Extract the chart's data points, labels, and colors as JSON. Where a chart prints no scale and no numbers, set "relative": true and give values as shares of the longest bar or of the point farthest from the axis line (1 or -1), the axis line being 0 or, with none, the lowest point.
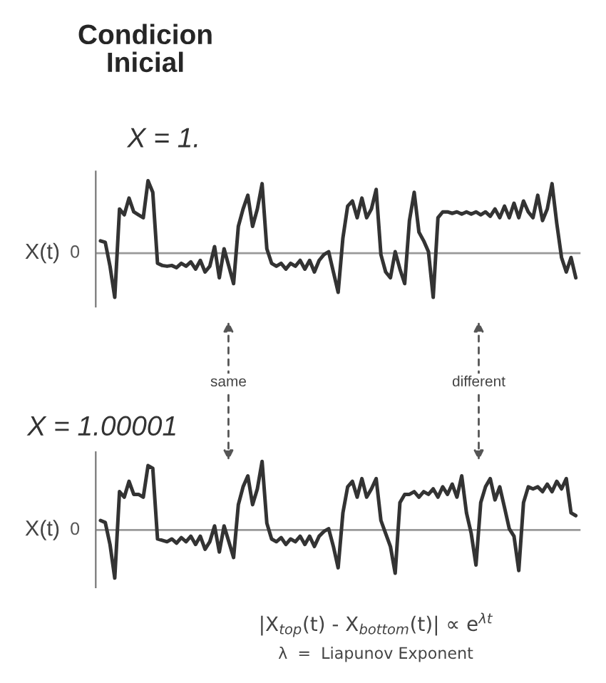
{
  "chart_data": [
    {
      "type": "line",
      "title": "Condicion\nInicial",
      "subtitle": "X = 1.",
      "ylabel": "X(t)",
      "relative": true,
      "legend": false,
      "marker": "none",
      "line_style": "solid",
      "categories": [
        null,
        null,
        null,
        null,
        null,
        null,
        null,
        null,
        null,
        null,
        null,
        null,
        null,
        null,
        null,
        null,
        null,
        null,
        null,
        null,
        null,
        null,
        null,
        null,
        null,
        null,
        null,
        null,
        null,
        null,
        null,
        null,
        null,
        null,
        null,
        null,
        null,
        null,
        null,
        null,
        null,
        null,
        null,
        null,
        null,
        null,
        null,
        null,
        null,
        null,
        null,
        null,
        null,
        null,
        null,
        null,
        null,
        null,
        null,
        null,
        null,
        null,
        null,
        null,
        null,
        null,
        null,
        null,
        null,
        null,
        null,
        null,
        null,
        null,
        null,
        null,
        null,
        null,
        null,
        null,
        null,
        null,
        null,
        null,
        null,
        null,
        null,
        null,
        null,
        null,
        null,
        null,
        null,
        null,
        null,
        null,
        null,
        null,
        null,
        null,
        null
      ],
      "series": [
        {
          "color": "#333333",
          "values": [
            0.17,
            0.15,
            -0.18,
            -0.61,
            0.61,
            0.53,
            0.76,
            0.57,
            0.53,
            0.49,
            1,
            0.84,
            -0.14,
            -0.17,
            -0.18,
            -0.17,
            -0.2,
            -0.14,
            -0.18,
            -0.12,
            -0.22,
            -0.1,
            -0.26,
            -0.18,
            0.09,
            -0.34,
            0.06,
            -0.18,
            -0.42,
            0.37,
            0.61,
            0.8,
            0.37,
            0.61,
            0.96,
            0.06,
            -0.14,
            -0.18,
            -0.14,
            -0.22,
            -0.14,
            -0.18,
            -0.1,
            -0.22,
            -0.1,
            -0.26,
            -0.1,
            -0.02,
            0.02,
            -0.26,
            -0.54,
            0.21,
            0.65,
            0.72,
            0.49,
            0.76,
            0.49,
            0.61,
            0.88,
            -0.02,
            -0.26,
            -0.34,
            0.02,
            -0.22,
            -0.42,
            0.45,
            0.84,
            0.29,
            0.17,
            0.02,
            -0.61,
            0.49,
            0.57,
            0.57,
            0.55,
            0.57,
            0.54,
            0.57,
            0.54,
            0.57,
            0.53,
            0.57,
            0.51,
            0.61,
            0.49,
            0.65,
            0.49,
            0.69,
            0.49,
            0.72,
            0.57,
            0.49,
            0.8,
            0.45,
            0.61,
            0.96,
            0.41,
            -0.06,
            -0.26,
            -0.06,
            -0.34
          ]
        }
      ],
      "ref_lines": [
        {
          "axis": "y",
          "value": 0,
          "label": "0",
          "color": "#999999"
        }
      ]
    },
    {
      "type": "line",
      "title": "X = 1.00001",
      "ylabel": "X(t)",
      "relative": true,
      "legend": false,
      "marker": "none",
      "line_style": "solid",
      "categories": [
        null,
        null,
        null,
        null,
        null,
        null,
        null,
        null,
        null,
        null,
        null,
        null,
        null,
        null,
        null,
        null,
        null,
        null,
        null,
        null,
        null,
        null,
        null,
        null,
        null,
        null,
        null,
        null,
        null,
        null,
        null,
        null,
        null,
        null,
        null,
        null,
        null,
        null,
        null,
        null,
        null,
        null,
        null,
        null,
        null,
        null,
        null,
        null,
        null,
        null,
        null,
        null,
        null,
        null,
        null,
        null,
        null,
        null,
        null,
        null,
        null,
        null,
        null,
        null,
        null,
        null,
        null,
        null,
        null,
        null,
        null,
        null,
        null,
        null,
        null,
        null,
        null,
        null,
        null,
        null,
        null,
        null,
        null,
        null,
        null,
        null,
        null,
        null,
        null,
        null,
        null,
        null,
        null,
        null,
        null,
        null,
        null,
        null,
        null,
        null,
        null
      ],
      "series": [
        {
          "color": "#333333",
          "values": [
            0.14,
            0.11,
            -0.21,
            -0.7,
            0.56,
            0.48,
            0.71,
            0.52,
            0.52,
            0.48,
            0.94,
            0.9,
            -0.13,
            -0.15,
            -0.17,
            -0.13,
            -0.19,
            -0.11,
            -0.17,
            -0.09,
            -0.21,
            -0.09,
            -0.28,
            -0.17,
            0.06,
            -0.32,
            0.06,
            -0.17,
            -0.4,
            0.37,
            0.63,
            0.79,
            0.37,
            0.6,
            1,
            0.1,
            -0.13,
            -0.17,
            -0.11,
            -0.21,
            -0.13,
            -0.17,
            -0.09,
            -0.21,
            -0.09,
            -0.24,
            -0.09,
            -0.02,
            0.02,
            -0.24,
            -0.55,
            0.25,
            0.63,
            0.71,
            0.48,
            0.75,
            0.48,
            0.6,
            0.75,
            0.14,
            -0.05,
            -0.24,
            -0.63,
            0.4,
            0.52,
            0.52,
            0.56,
            0.48,
            0.56,
            0.52,
            0.6,
            0.48,
            0.63,
            0.52,
            0.67,
            0.48,
            0.79,
            0.25,
            -0.05,
            -0.51,
            0.4,
            0.63,
            0.75,
            0.44,
            0.63,
            0.33,
            0.02,
            -0.09,
            -0.59,
            0.4,
            0.63,
            0.6,
            0.63,
            0.56,
            0.67,
            0.56,
            0.71,
            0.6,
            0.75,
            0.25,
            0.21
          ]
        }
      ],
      "ref_lines": [
        {
          "axis": "y",
          "value": 0,
          "label": "0",
          "color": "#999999"
        }
      ],
      "annotations": [
        "same",
        "different",
        "|X$_{top}$(t) - X$_{bottom}$(t)| ∝ e$^{λt}$",
        "λ  =  Liapunov Exponent"
      ]
    }
  ]
}
